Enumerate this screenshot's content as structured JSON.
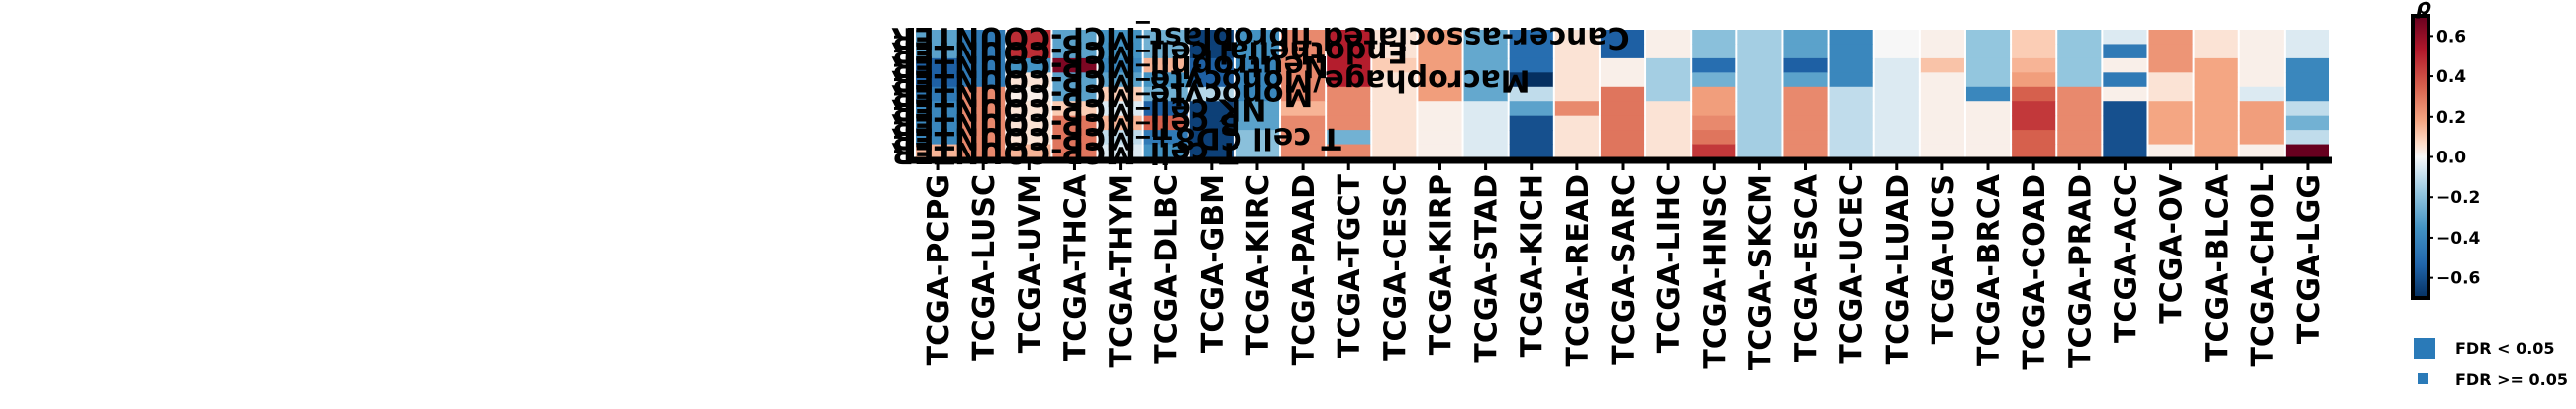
{
  "chart_data": {
    "type": "heatmap",
    "rows": [
      "Cancer-associated fibroblast_MCP-COUNTER",
      "Endothelial cell_MCP-COUNTER",
      "Neutrophil_MCP-COUNTER",
      "Macrophage/Monocyte_MCP-COUNTER",
      "Monocyte_MCP-COUNTER",
      "NK cell_MCP-COUNTER",
      "B cell_MCP-COUNTER",
      "T cell CD8+_MCP-COUNTER",
      "T cell_MCP-COUNTER"
    ],
    "columns": [
      "TCGA-PCPG",
      "TCGA-LUSC",
      "TCGA-UVM",
      "TCGA-THCA",
      "TCGA-THYM",
      "TCGA-DLBC",
      "TCGA-GBM",
      "TCGA-KIRC",
      "TCGA-PAAD",
      "TCGA-TGCT",
      "TCGA-CESC",
      "TCGA-KIRP",
      "TCGA-STAD",
      "TCGA-KICH",
      "TCGA-READ",
      "TCGA-SARC",
      "TCGA-LIHC",
      "TCGA-HNSC",
      "TCGA-SKCM",
      "TCGA-ESCA",
      "TCGA-UCEC",
      "TCGA-LUAD",
      "TCGA-UCS",
      "TCGA-BRCA",
      "TCGA-COAD",
      "TCGA-PRAD",
      "TCGA-ACC",
      "TCGA-OV",
      "TCGA-BLCA",
      "TCGA-CHOL",
      "TCGA-LGG"
    ],
    "values": [
      [
        -0.3,
        -0.45,
        0.48,
        -0.3,
        -0.35,
        -0.25,
        -0.65,
        -0.35,
        0.25,
        0.52,
        0.05,
        0.2,
        -0.28,
        -0.5,
        0.05,
        -0.55,
        0.02,
        -0.2,
        -0.15,
        -0.3,
        -0.4,
        0.0,
        0.02,
        -0.18,
        0.1,
        -0.18,
        -0.05,
        0.22,
        0.05,
        0.02,
        -0.05
      ],
      [
        -0.3,
        -0.45,
        0.48,
        -0.3,
        -0.35,
        -0.25,
        -0.65,
        -0.35,
        0.25,
        0.52,
        0.05,
        0.2,
        -0.28,
        -0.5,
        0.05,
        -0.55,
        0.02,
        -0.2,
        -0.15,
        -0.3,
        -0.4,
        0.0,
        0.02,
        -0.18,
        0.1,
        -0.18,
        -0.45,
        0.22,
        0.05,
        0.02,
        -0.05
      ],
      [
        -0.55,
        -0.45,
        -0.35,
        0.65,
        -0.4,
        0.15,
        -0.55,
        -0.4,
        0.25,
        0.52,
        0.1,
        0.2,
        -0.28,
        -0.5,
        0.05,
        0.02,
        -0.15,
        -0.5,
        -0.15,
        -0.55,
        -0.4,
        -0.05,
        0.12,
        -0.18,
        0.15,
        -0.18,
        0.02,
        0.22,
        0.18,
        0.02,
        -0.4
      ],
      [
        -0.55,
        -0.45,
        0.05,
        -0.3,
        -0.3,
        -0.35,
        -0.55,
        -0.4,
        0.25,
        0.52,
        0.05,
        0.2,
        -0.28,
        -0.72,
        0.05,
        0.02,
        -0.15,
        -0.25,
        -0.15,
        -0.3,
        -0.4,
        -0.05,
        0.02,
        -0.18,
        0.2,
        -0.18,
        -0.45,
        0.05,
        0.18,
        0.02,
        -0.4
      ],
      [
        -0.45,
        0.25,
        0.02,
        -0.3,
        0.1,
        -0.25,
        -0.12,
        -0.4,
        0.25,
        0.25,
        0.05,
        0.2,
        -0.28,
        -0.1,
        0.05,
        0.3,
        -0.15,
        0.2,
        -0.15,
        0.25,
        -0.1,
        -0.05,
        0.02,
        -0.4,
        0.35,
        0.25,
        0.02,
        0.05,
        0.18,
        -0.05,
        -0.4
      ],
      [
        -0.4,
        0.25,
        0.05,
        0.1,
        -0.05,
        -0.55,
        -0.65,
        -0.3,
        0.15,
        0.25,
        0.05,
        0.02,
        -0.05,
        -0.3,
        0.25,
        0.3,
        0.05,
        0.2,
        -0.15,
        0.25,
        -0.1,
        -0.05,
        0.02,
        0.02,
        0.45,
        0.25,
        -0.6,
        0.18,
        0.18,
        0.2,
        -0.1
      ],
      [
        -0.4,
        0.25,
        0.05,
        0.3,
        0.15,
        0.35,
        -0.65,
        -0.3,
        0.25,
        0.25,
        0.05,
        0.02,
        -0.05,
        -0.6,
        0.05,
        0.3,
        0.05,
        0.25,
        -0.15,
        0.25,
        -0.1,
        -0.05,
        0.02,
        0.02,
        0.45,
        0.25,
        -0.6,
        0.18,
        0.18,
        0.2,
        -0.25
      ],
      [
        -0.4,
        0.25,
        0.05,
        0.3,
        -0.1,
        -0.45,
        -0.65,
        -0.2,
        0.25,
        -0.25,
        0.05,
        0.02,
        -0.05,
        -0.6,
        0.05,
        0.3,
        0.05,
        0.3,
        -0.15,
        0.25,
        -0.1,
        -0.05,
        0.02,
        0.02,
        0.35,
        0.25,
        -0.6,
        0.18,
        0.18,
        0.2,
        -0.1
      ],
      [
        0.15,
        0.25,
        0.15,
        0.3,
        -0.05,
        -0.35,
        -0.65,
        -0.2,
        0.25,
        0.25,
        0.05,
        0.02,
        -0.05,
        -0.6,
        0.05,
        0.3,
        0.05,
        0.45,
        -0.15,
        0.25,
        -0.1,
        -0.05,
        0.02,
        0.02,
        0.35,
        0.25,
        -0.6,
        0.02,
        0.18,
        0.02,
        0.72
      ]
    ],
    "colorbar": {
      "title": "ρ",
      "ticks": [
        "0.6",
        "0.4",
        "0.2",
        "0.0",
        "−0.2",
        "−0.4",
        "−0.6"
      ],
      "range": [
        -0.7,
        0.7
      ],
      "colormap": "RdBu_r"
    },
    "legend": {
      "items": [
        {
          "label": "FDR < 0.05",
          "marker": "large-square"
        },
        {
          "label": "FDR >= 0.05",
          "marker": "small-square"
        }
      ],
      "color": "#2a7ab8",
      "placement": "bottom-right"
    }
  }
}
